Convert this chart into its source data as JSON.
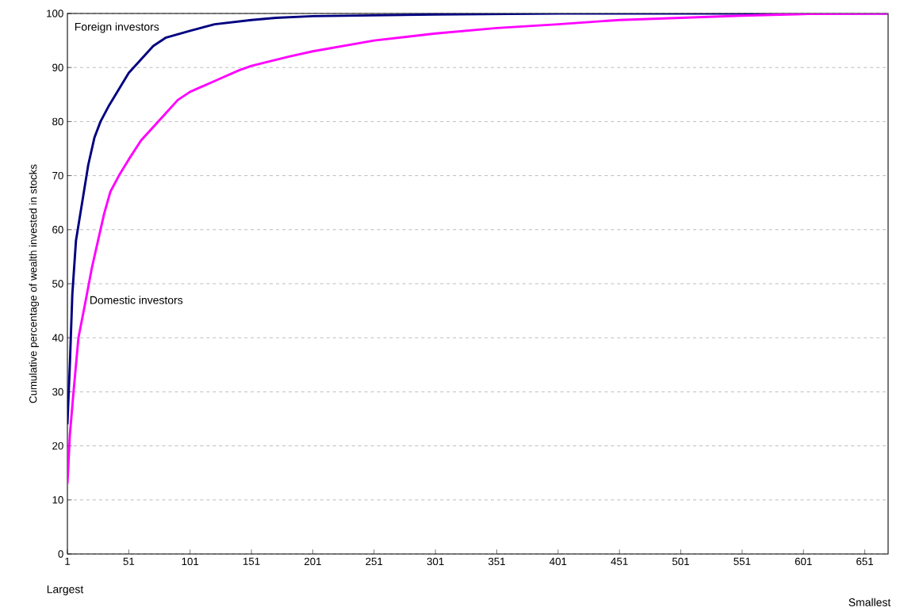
{
  "chart_data": {
    "type": "line",
    "ylabel": "Cumulative percentage of wealth invested in stocks",
    "xlim": [
      1,
      670
    ],
    "ylim": [
      0,
      100
    ],
    "xticks": [
      1,
      51,
      101,
      151,
      201,
      251,
      301,
      351,
      401,
      451,
      501,
      551,
      601,
      651
    ],
    "yticks": [
      0,
      10,
      20,
      30,
      40,
      50,
      60,
      70,
      80,
      90,
      100
    ],
    "grid": "y",
    "legend": false,
    "marker": "none",
    "line_style": "solid",
    "annotations": [
      "Largest",
      "Smallest"
    ],
    "series": [
      {
        "name": "Foreign investors",
        "color": "#000080",
        "x": [
          1,
          3,
          5,
          8,
          13,
          18,
          23,
          28,
          35,
          43,
          51,
          61,
          71,
          81,
          101,
          121,
          151,
          171,
          201,
          301,
          401,
          670
        ],
        "values": [
          24,
          35,
          48,
          58,
          65,
          72,
          77,
          80,
          83,
          86,
          89,
          91.5,
          94,
          95.5,
          96.8,
          98,
          98.8,
          99.2,
          99.5,
          99.8,
          100,
          100
        ]
      },
      {
        "name": "Domestic investors",
        "color": "#ff00ff",
        "x": [
          1,
          3,
          6,
          10,
          16,
          21,
          26,
          31,
          36,
          43,
          51,
          61,
          71,
          81,
          91,
          101,
          121,
          141,
          151,
          181,
          201,
          251,
          301,
          351,
          401,
          451,
          501,
          551,
          601,
          670
        ],
        "values": [
          13,
          22,
          30,
          40,
          47,
          53,
          58,
          63,
          67,
          70,
          73,
          76.5,
          79,
          81.5,
          84,
          85.5,
          87.5,
          89.5,
          90.3,
          92,
          93,
          95,
          96.3,
          97.3,
          98,
          98.8,
          99.2,
          99.6,
          99.9,
          100
        ]
      }
    ]
  }
}
